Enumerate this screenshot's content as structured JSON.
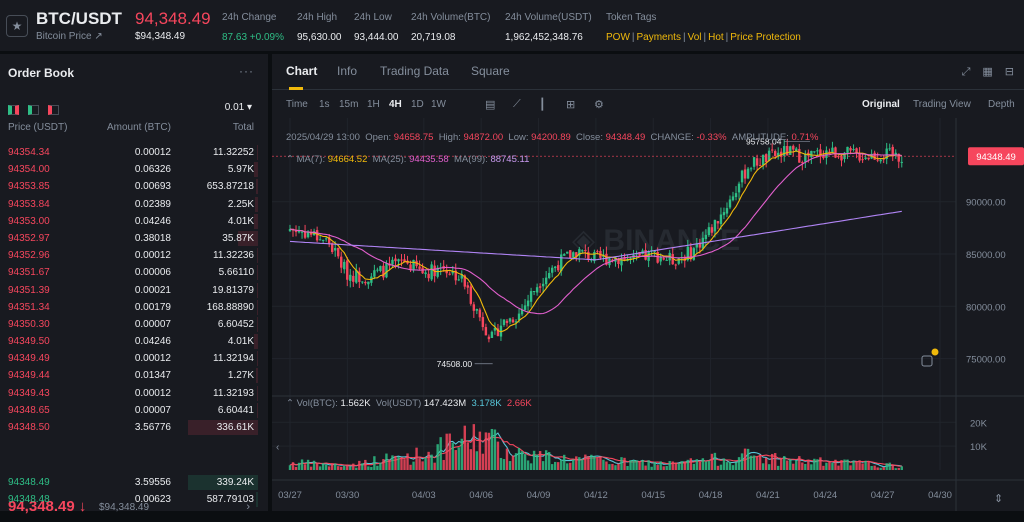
{
  "header": {
    "symbol": "BTC/USDT",
    "subtitle": "Bitcoin Price",
    "subtitle_arrow": "↗",
    "last_price": "94,348.49",
    "last_price_usd": "$94,348.49",
    "stats": [
      {
        "label": "24h Change",
        "value": "87.63 +0.09%",
        "color": "#2ebd85"
      },
      {
        "label": "24h High",
        "value": "95,630.00",
        "color": "#eaecef"
      },
      {
        "label": "24h Low",
        "value": "93,444.00",
        "color": "#eaecef"
      },
      {
        "label": "24h Volume(BTC)",
        "value": "20,719.08",
        "color": "#eaecef"
      },
      {
        "label": "24h Volume(USDT)",
        "value": "1,962,452,348.76",
        "color": "#eaecef"
      }
    ],
    "tags_label": "Token Tags",
    "tags": [
      "POW",
      "Payments",
      "Vol",
      "Hot",
      "Price Protection"
    ]
  },
  "orderbook": {
    "title": "Order Book",
    "menu": "···",
    "precision": "0.01 ▾",
    "col_price": "Price (USDT)",
    "col_amount": "Amount (BTC)",
    "col_total": "Total",
    "asks": [
      {
        "price": "94354.34",
        "amount": "0.00012",
        "total": "11.32252",
        "depth": 0.02
      },
      {
        "price": "94354.00",
        "amount": "0.06326",
        "total": "5.97K",
        "depth": 0.05
      },
      {
        "price": "94353.85",
        "amount": "0.00693",
        "total": "653.87218",
        "depth": 0.03
      },
      {
        "price": "94353.84",
        "amount": "0.02389",
        "total": "2.25K",
        "depth": 0.04
      },
      {
        "price": "94353.00",
        "amount": "0.04246",
        "total": "4.01K",
        "depth": 0.05
      },
      {
        "price": "94352.97",
        "amount": "0.38018",
        "total": "35.87K",
        "depth": 0.28
      },
      {
        "price": "94352.96",
        "amount": "0.00012",
        "total": "11.32236",
        "depth": 0.02
      },
      {
        "price": "94351.67",
        "amount": "0.00006",
        "total": "5.66110",
        "depth": 0.01
      },
      {
        "price": "94351.39",
        "amount": "0.00021",
        "total": "19.81379",
        "depth": 0.02
      },
      {
        "price": "94351.34",
        "amount": "0.00179",
        "total": "168.88890",
        "depth": 0.02
      },
      {
        "price": "94350.30",
        "amount": "0.00007",
        "total": "6.60452",
        "depth": 0.01
      },
      {
        "price": "94349.50",
        "amount": "0.04246",
        "total": "4.01K",
        "depth": 0.05
      },
      {
        "price": "94349.49",
        "amount": "0.00012",
        "total": "11.32194",
        "depth": 0.02
      },
      {
        "price": "94349.44",
        "amount": "0.01347",
        "total": "1.27K",
        "depth": 0.03
      },
      {
        "price": "94349.43",
        "amount": "0.00012",
        "total": "11.32193",
        "depth": 0.02
      },
      {
        "price": "94348.65",
        "amount": "0.00007",
        "total": "6.60441",
        "depth": 0.01
      },
      {
        "price": "94348.50",
        "amount": "3.56776",
        "total": "336.61K",
        "depth": 1.0
      }
    ],
    "mid_price": "94,348.49 ↓",
    "mid_usd": "$94,348.49",
    "mid_more": "›",
    "bids": [
      {
        "price": "94348.49",
        "amount": "3.59556",
        "total": "339.24K",
        "depth": 1.0
      },
      {
        "price": "94348.48",
        "amount": "0.00623",
        "total": "587.79103",
        "depth": 0.03
      }
    ]
  },
  "chart_panel": {
    "tabs": [
      "Chart",
      "Info",
      "Trading Data",
      "Square"
    ],
    "intervals": [
      "Time",
      "1s",
      "15m",
      "1H",
      "4H",
      "1D",
      "1W"
    ],
    "active_interval": "4H",
    "views": [
      "Original",
      "Trading View",
      "Depth"
    ],
    "active_view": "Original",
    "ohlc": {
      "date": "2025/04/29 13:00",
      "open_label": "Open:",
      "open": "94658.75",
      "high_label": "High:",
      "high": "94872.00",
      "low_label": "Low:",
      "low": "94200.89",
      "close_label": "Close:",
      "close": "94348.49",
      "change_label": "CHANGE:",
      "change": "-0.33%",
      "amp_label": "AMPLITUDE:",
      "amp": "0.71%"
    },
    "ma": {
      "ma7_label": "MA(7):",
      "ma7": "94664.52",
      "ma25_label": "MA(25):",
      "ma25": "94435.58",
      "ma99_label": "MA(99):",
      "ma99": "88745.11"
    },
    "vol": {
      "btc_label": "Vol(BTC):",
      "btc": "1.562K",
      "usdt_label": "Vol(USDT)",
      "usdt": "147.423M",
      "v1": "3.178K",
      "v2": "2.66K"
    },
    "price_tag": "94348.49",
    "high_annot": "95758.04",
    "low_annot": "74508.00",
    "colors": {
      "up": "#2ebd85",
      "down": "#f6465d",
      "ma7": "#f0b90b",
      "ma25": "#e15fcd",
      "ma99": "#b084f5"
    }
  },
  "chart_data": {
    "type": "candlestick",
    "y_ticks": [
      "90000.00",
      "85000.00",
      "80000.00",
      "75000.00"
    ],
    "y_tick_values": [
      90000,
      85000,
      80000,
      75000
    ],
    "ylim": [
      72000,
      98000
    ],
    "vol_ticks": [
      "20K",
      "10K"
    ],
    "vol_tick_values": [
      20000,
      10000
    ],
    "vol_max": 26000,
    "x_ticks": [
      "03/27",
      "03/30",
      "04/03",
      "04/06",
      "04/09",
      "04/12",
      "04/15",
      "04/18",
      "04/21",
      "04/24",
      "04/27",
      "04/30"
    ],
    "x_tick_days": [
      0,
      3,
      7,
      10,
      13,
      16,
      19,
      22,
      25,
      28,
      31,
      34
    ],
    "start": "2025/03/27",
    "price_path": [
      [
        0,
        87400
      ],
      [
        1,
        87000
      ],
      [
        2,
        86200
      ],
      [
        3,
        83100
      ],
      [
        4,
        82800
      ],
      [
        5,
        83500
      ],
      [
        6,
        84300
      ],
      [
        7,
        83200
      ],
      [
        8,
        83800
      ],
      [
        9,
        82600
      ],
      [
        10,
        78700
      ],
      [
        10.6,
        76800
      ],
      [
        11,
        78300
      ],
      [
        12,
        79300
      ],
      [
        13,
        82300
      ],
      [
        14,
        84100
      ],
      [
        15,
        85300
      ],
      [
        16,
        84500
      ],
      [
        17,
        84700
      ],
      [
        18,
        84400
      ],
      [
        19,
        85000
      ],
      [
        20,
        84400
      ],
      [
        21,
        85200
      ],
      [
        22,
        87300
      ],
      [
        23,
        90100
      ],
      [
        24,
        93500
      ],
      [
        25,
        94200
      ],
      [
        26,
        94800
      ],
      [
        27,
        94200
      ],
      [
        28,
        94800
      ],
      [
        29,
        94600
      ],
      [
        30,
        94400
      ],
      [
        31,
        94500
      ],
      [
        32,
        94348
      ]
    ],
    "volume_path": [
      [
        0,
        3000
      ],
      [
        3,
        1800
      ],
      [
        5,
        4500
      ],
      [
        7,
        6500
      ],
      [
        9,
        11500
      ],
      [
        10,
        15000
      ],
      [
        11,
        9500
      ],
      [
        12,
        7000
      ],
      [
        14,
        5000
      ],
      [
        17,
        3500
      ],
      [
        20,
        2500
      ],
      [
        24,
        6000
      ],
      [
        26,
        4200
      ],
      [
        28,
        3200
      ],
      [
        30,
        2600
      ],
      [
        32,
        1562
      ]
    ]
  }
}
